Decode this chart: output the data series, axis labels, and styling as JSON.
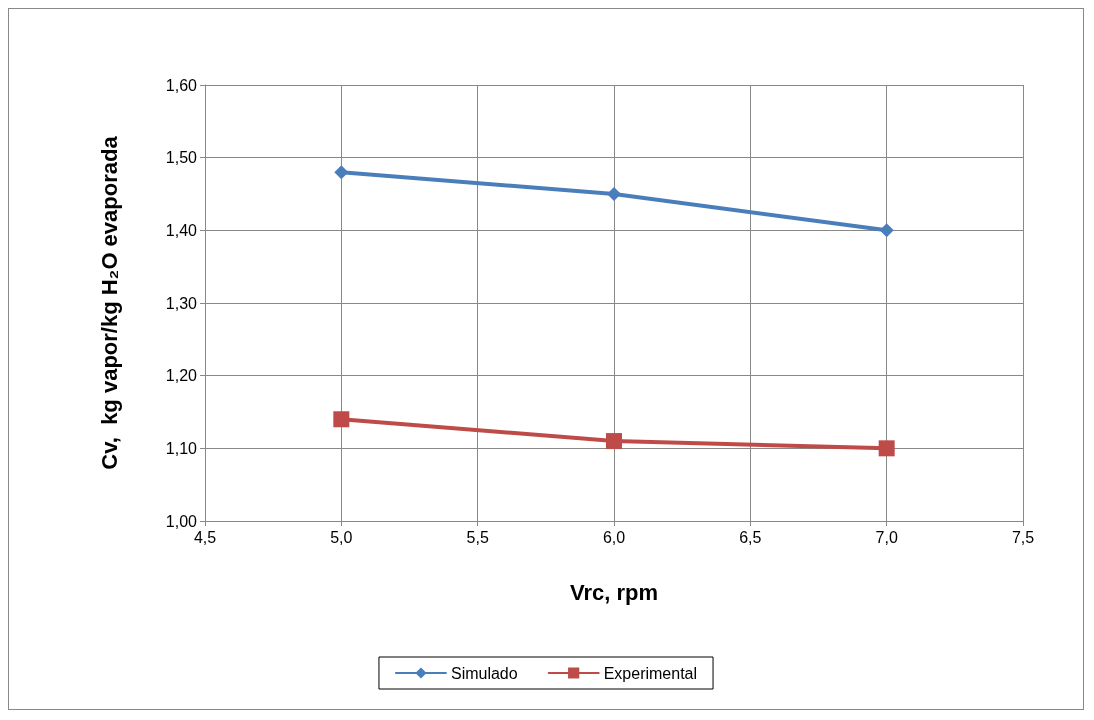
{
  "chart_data": {
    "type": "line",
    "xlabel": "Vrc, rpm",
    "ylabel": "Cv,  kg vapor/kg H₂O evaporada",
    "x": [
      5.0,
      6.0,
      7.0
    ],
    "series": [
      {
        "name": "Simulado",
        "color": "#4a7ebb",
        "marker": "diamond",
        "values": [
          1.48,
          1.45,
          1.4
        ]
      },
      {
        "name": "Experimental",
        "color": "#be4b48",
        "marker": "square",
        "values": [
          1.14,
          1.11,
          1.1
        ]
      }
    ],
    "xlim": [
      4.5,
      7.5
    ],
    "xticks": [
      {
        "value": 4.5,
        "label": "4,5"
      },
      {
        "value": 5.0,
        "label": "5,0"
      },
      {
        "value": 5.5,
        "label": "5,5"
      },
      {
        "value": 6.0,
        "label": "6,0"
      },
      {
        "value": 6.5,
        "label": "6,5"
      },
      {
        "value": 7.0,
        "label": "7,0"
      },
      {
        "value": 7.5,
        "label": "7,5"
      }
    ],
    "ylim": [
      1.0,
      1.6
    ],
    "yticks": [
      {
        "value": 1.0,
        "label": "1,00"
      },
      {
        "value": 1.1,
        "label": "1,10"
      },
      {
        "value": 1.2,
        "label": "1,20"
      },
      {
        "value": 1.3,
        "label": "1,30"
      },
      {
        "value": 1.4,
        "label": "1,40"
      },
      {
        "value": 1.5,
        "label": "1,50"
      },
      {
        "value": 1.6,
        "label": "1,60"
      }
    ],
    "grid": true,
    "legend": "bottom",
    "line_style": "solid"
  }
}
